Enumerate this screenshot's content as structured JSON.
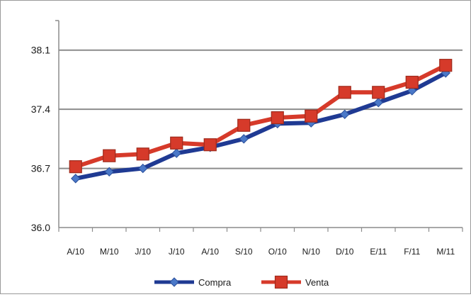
{
  "chart_data": {
    "type": "line",
    "categories": [
      "A/10",
      "M/10",
      "J/10",
      "J/10",
      "A/10",
      "S/10",
      "O/10",
      "N/10",
      "D/10",
      "E/11",
      "F/11",
      "M/11"
    ],
    "yticks": [
      "36.0",
      "36.7",
      "37.4",
      "38.1"
    ],
    "ylim": [
      36.0,
      38.45
    ],
    "grid": true,
    "legend_position": "bottom",
    "series": [
      {
        "name": "Compra",
        "color": "#1f3a93",
        "marker": "diamond",
        "values": [
          36.58,
          36.66,
          36.7,
          36.88,
          36.95,
          37.05,
          37.23,
          37.24,
          37.34,
          37.48,
          37.62,
          37.83
        ]
      },
      {
        "name": "Venta",
        "color": "#d63a2a",
        "marker": "square",
        "values": [
          36.72,
          36.85,
          36.87,
          37.0,
          36.98,
          37.21,
          37.3,
          37.32,
          37.6,
          37.6,
          37.72,
          37.92
        ]
      }
    ]
  }
}
